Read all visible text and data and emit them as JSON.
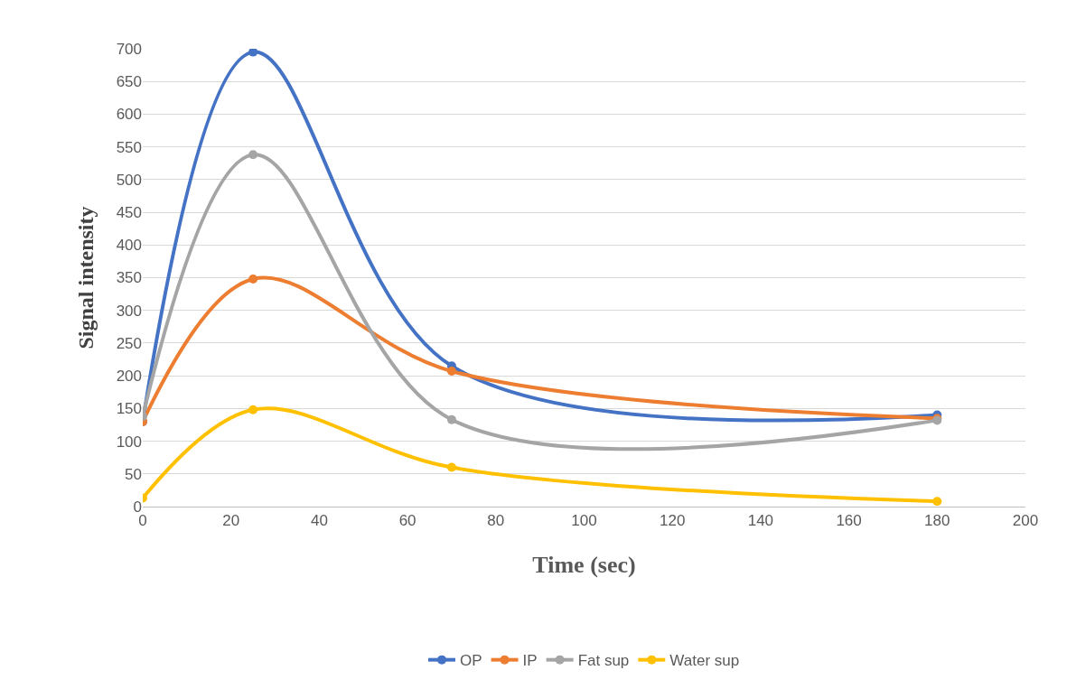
{
  "chart_data": {
    "type": "line",
    "xlabel": "Time (sec)",
    "ylabel": "Signal intensity",
    "x": [
      0,
      25,
      70,
      180
    ],
    "series": [
      {
        "name": "OP",
        "color": "#4472c4",
        "values": [
          130,
          695,
          215,
          140
        ]
      },
      {
        "name": "IP",
        "color": "#ed7d31",
        "values": [
          130,
          348,
          207,
          135
        ]
      },
      {
        "name": "Fat sup",
        "color": "#a5a5a5",
        "values": [
          138,
          538,
          133,
          132
        ]
      },
      {
        "name": "Water sup",
        "color": "#ffc000",
        "values": [
          13,
          148,
          60,
          8
        ]
      }
    ],
    "xlim": [
      0,
      200
    ],
    "xticks": [
      0,
      20,
      40,
      60,
      80,
      100,
      120,
      140,
      160,
      180,
      200
    ],
    "ylim": [
      0,
      700
    ],
    "yticks": [
      0,
      50,
      100,
      150,
      200,
      250,
      300,
      350,
      400,
      450,
      500,
      550,
      600,
      650,
      700
    ],
    "grid": "y",
    "legend": "bottom",
    "marker": "circle",
    "line_style": "solid"
  }
}
